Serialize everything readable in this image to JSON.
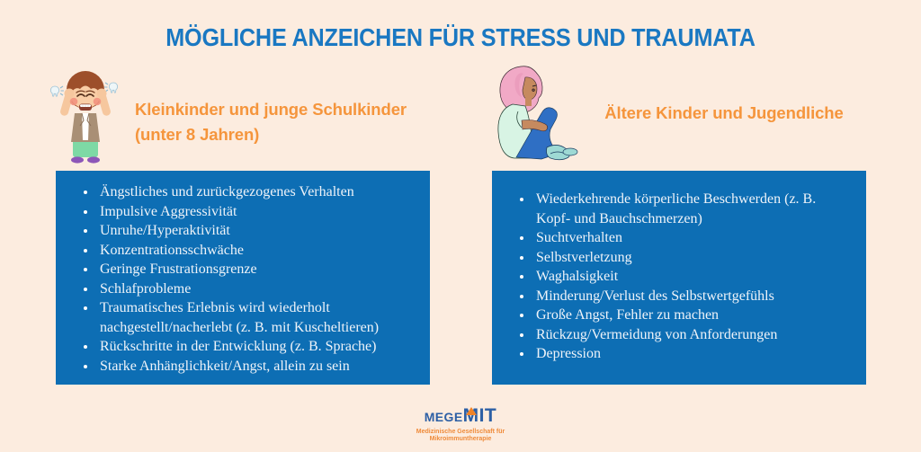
{
  "title": "MÖGLICHE ANZEICHEN FÜR STRESS UND TRAUMATA",
  "colors": {
    "background": "#fcecdf",
    "panel_blue": "#0d6eb4",
    "title_blue": "#1a78c2",
    "heading_orange": "#f5953c",
    "bullet_text": "#eef3f9",
    "logo_blue": "#2c5fa5",
    "logo_orange": "#f08327"
  },
  "left_section": {
    "heading_line1": "Kleinkinder und junge Schulkinder",
    "heading_line2": "(unter 8 Jahren)",
    "illustration": "crying-child-grinding-teeth",
    "items": [
      "Ängstliches und zurückgezogenes Verhalten",
      "Impulsive Aggressivität",
      "Unruhe/Hyperaktivität",
      "Konzentrationsschwäche",
      "Geringe Frustrationsgrenze",
      "Schlafprobleme",
      "Traumatisches Erlebnis wird wiederholt nachgestellt/nacherlebt (z. B. mit Kuscheltieren)",
      "Rückschritte in der Entwicklung (z. B. Sprache)",
      "Starke Anhänglichkeit/Angst, allein zu sein"
    ]
  },
  "right_section": {
    "heading_line1": "Ältere Kinder und Jugendliche",
    "illustration": "sitting-pensive-teenager",
    "items": [
      "Wiederkehrende körperliche Beschwerden (z. B. Kopf- und Bauchschmerzen)",
      "Suchtverhalten",
      "Selbstverletzung",
      "Waghalsigkeit",
      "Minderung/Verlust des Selbstwertgefühls",
      "Große Angst, Fehler zu machen",
      "Rückzug/Vermeidung von Anforderungen",
      "Depression"
    ]
  },
  "footer": {
    "logo_mege": "MEGE",
    "logo_m": "M",
    "logo_it": "IT",
    "tagline_line1": "Medizinische Gesellschaft für",
    "tagline_line2": "Mikroimmuntherapie"
  }
}
